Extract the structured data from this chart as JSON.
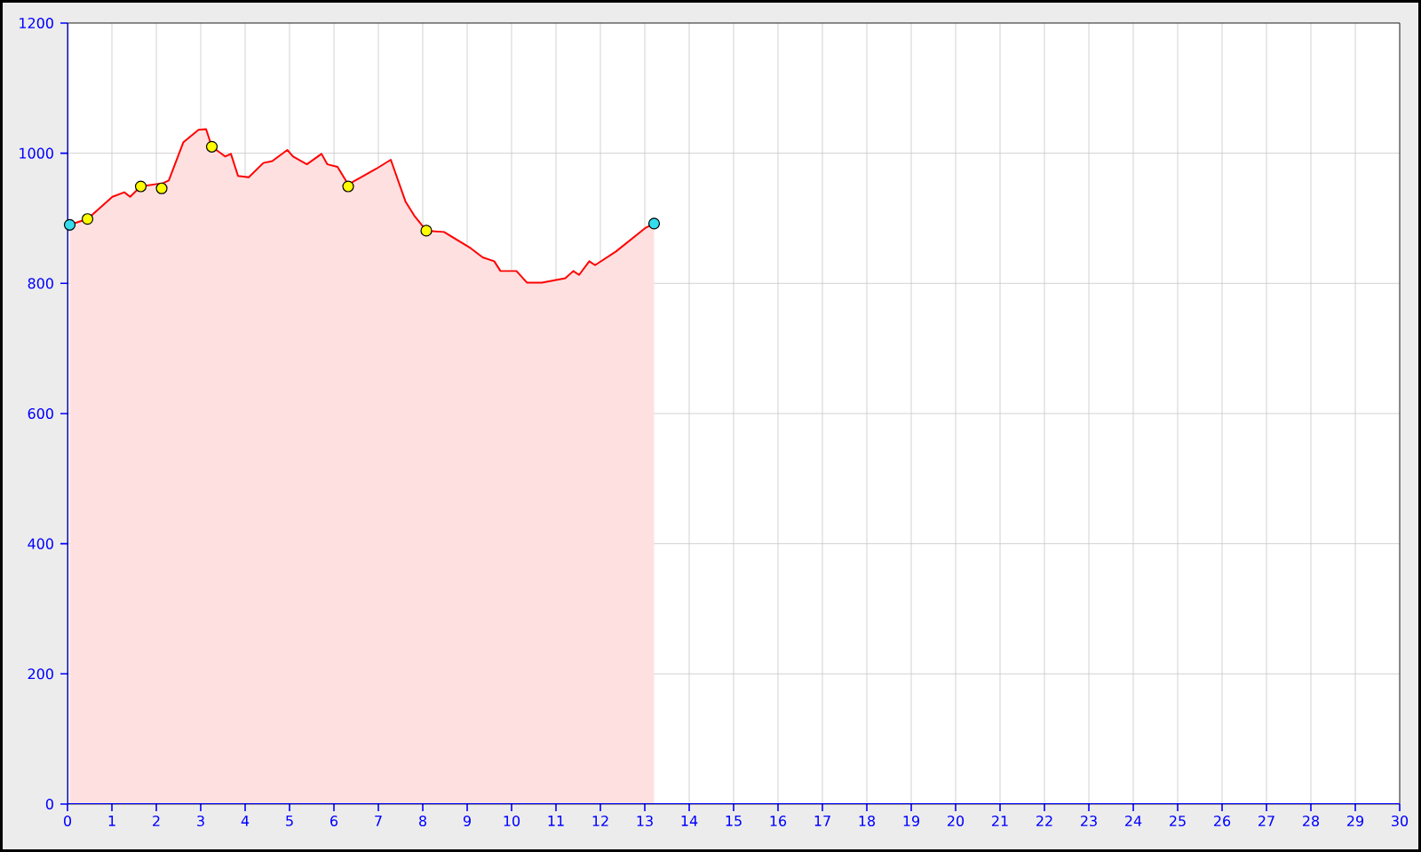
{
  "chart_data": {
    "type": "area",
    "x": [
      0.05,
      0.45,
      1.01,
      1.28,
      1.41,
      1.65,
      2.15,
      2.28,
      2.61,
      2.95,
      3.12,
      3.25,
      3.55,
      3.68,
      3.84,
      4.08,
      4.41,
      4.61,
      4.95,
      5.08,
      5.39,
      5.72,
      5.85,
      6.08,
      6.32,
      6.95,
      7.28,
      7.61,
      7.81,
      8.08,
      8.48,
      9.08,
      9.35,
      9.61,
      9.75,
      10.11,
      10.35,
      10.68,
      11.21,
      11.39,
      11.52,
      11.75,
      11.88,
      12.35,
      13.01,
      13.21
    ],
    "series": [
      {
        "color": "#ff0000",
        "values": [
          890,
          899,
          933,
          940,
          933,
          949,
          954,
          958,
          1017,
          1036,
          1037,
          1010,
          995,
          999,
          965,
          963,
          985,
          988,
          1005,
          995,
          983,
          999,
          983,
          979,
          952,
          976,
          990,
          926,
          904,
          881,
          879,
          854,
          840,
          834,
          819,
          819,
          801,
          801,
          808,
          819,
          813,
          834,
          828,
          849,
          885,
          892
        ]
      },
      {
        "type": "scatter",
        "marker": "circle",
        "color": "#ffff00",
        "x": [
          0.45,
          1.65,
          2.12,
          3.25,
          6.32,
          8.08
        ],
        "values": [
          899,
          949,
          946,
          1010,
          949,
          881
        ]
      },
      {
        "type": "scatter",
        "marker": "circle",
        "color": "#33ddee",
        "x": [
          0.05,
          13.21
        ],
        "values": [
          890,
          892
        ]
      }
    ],
    "xlim": [
      0,
      30
    ],
    "ylim": [
      0,
      1200
    ],
    "xticks": [
      0,
      1,
      2,
      3,
      4,
      5,
      6,
      7,
      8,
      9,
      10,
      11,
      12,
      13,
      14,
      15,
      16,
      17,
      18,
      19,
      20,
      21,
      22,
      23,
      24,
      25,
      26,
      27,
      28,
      29,
      30
    ],
    "yticks": [
      0,
      200,
      400,
      600,
      800,
      1000,
      1200
    ],
    "grid": true
  }
}
